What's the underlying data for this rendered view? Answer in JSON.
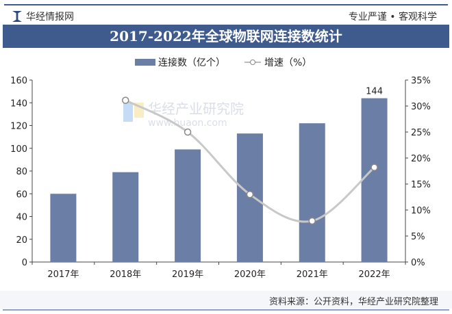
{
  "header": {
    "brand": "华经情报网",
    "slogan": "专业严谨 • 客观科学"
  },
  "footer": {
    "source": "资料来源：公开资料，华经产业研究院整理"
  },
  "watermark": "华经产业研究院 www.huaon.com",
  "colors": {
    "bar": "#6b7fa6",
    "line": "#c8c8c8",
    "title_bg": "#3f5a8c"
  },
  "chart_data": {
    "type": "bar",
    "title": "2017-2022年全球物联网连接数统计",
    "categories": [
      "2017年",
      "2018年",
      "2019年",
      "2020年",
      "2021年",
      "2022年"
    ],
    "series": [
      {
        "name": "连接数（亿个）",
        "type": "bar",
        "axis": "left",
        "values": [
          60,
          79,
          99,
          113,
          122,
          144
        ]
      },
      {
        "name": "增速（%）",
        "type": "line",
        "axis": "right",
        "values": [
          null,
          31.1,
          25.0,
          13.0,
          7.9,
          18.2
        ]
      }
    ],
    "data_labels": [
      {
        "category": "2022年",
        "text": "144"
      }
    ],
    "y_left": {
      "ylim": [
        0,
        160
      ],
      "ticks": [
        "0",
        "20",
        "40",
        "60",
        "80",
        "100",
        "120",
        "140",
        "160"
      ]
    },
    "y_right": {
      "ylim": [
        0,
        35
      ],
      "ticks": [
        "0%",
        "5%",
        "10%",
        "15%",
        "20%",
        "25%",
        "30%",
        "35%"
      ]
    },
    "legend": "top-center",
    "grid": false
  }
}
